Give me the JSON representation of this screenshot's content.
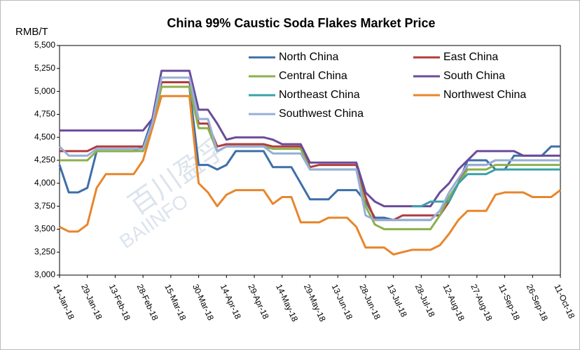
{
  "chart_data": {
    "type": "line",
    "title": "China 99% Caustic Soda Flakes Market Price",
    "y_label": "RMB/T",
    "watermark": [
      "百川盈孚",
      "BAIINFO"
    ],
    "categories": [
      "14-Jan-18",
      null,
      null,
      "29-Jan-18",
      null,
      null,
      "13-Feb-18",
      null,
      null,
      "28-Feb-18",
      null,
      null,
      "15-Mar-18",
      null,
      null,
      "30-Mar-18",
      null,
      null,
      "14-Apr-18",
      null,
      null,
      "29-Apr-18",
      null,
      null,
      "14-May-18",
      null,
      null,
      "29-May-18",
      null,
      null,
      "13-Jun-18",
      null,
      null,
      "28-Jun-18",
      null,
      null,
      "13-Jul-18",
      null,
      null,
      "28-Jul-18",
      null,
      null,
      "12-Aug-18",
      null,
      null,
      "27-Aug-18",
      null,
      null,
      "11-Sep-18",
      null,
      null,
      "26-Sep-18",
      null,
      null,
      "11-Oct-18"
    ],
    "ylim": [
      3000,
      5500
    ],
    "yticks": [
      {
        "value": 3000,
        "label": "3,000"
      },
      {
        "value": 3250,
        "label": "3,250"
      },
      {
        "value": 3500,
        "label": "3,500"
      },
      {
        "value": 3750,
        "label": "3,750"
      },
      {
        "value": 4000,
        "label": "4,000"
      },
      {
        "value": 4250,
        "label": "4,250"
      },
      {
        "value": 4500,
        "label": "4,500"
      },
      {
        "value": 4750,
        "label": "4,750"
      },
      {
        "value": 5000,
        "label": "5,000"
      },
      {
        "value": 5250,
        "label": "5,250"
      },
      {
        "value": 5500,
        "label": "5,500"
      }
    ],
    "grid": false,
    "legend": "top-right",
    "series": [
      {
        "name": "North China",
        "color": "#3d6fa8",
        "values": [
          4200,
          3900,
          3900,
          3950,
          4350,
          4350,
          4350,
          4350,
          4350,
          4400,
          4700,
          5050,
          5050,
          5050,
          5050,
          4200,
          4200,
          4150,
          4200,
          4350,
          4350,
          4350,
          4350,
          4175,
          4175,
          4175,
          4000,
          3825,
          3825,
          3825,
          3925,
          3925,
          3925,
          3800,
          3625,
          3625,
          3600,
          3600,
          3600,
          3600,
          3600,
          3700,
          3850,
          4000,
          4250,
          4250,
          4250,
          4150,
          4150,
          4300,
          4300,
          4300,
          4300,
          4400,
          4400
        ]
      },
      {
        "name": "East China",
        "color": "#b23c3c",
        "values": [
          4350,
          4350,
          4350,
          4350,
          4400,
          4400,
          4400,
          4400,
          4400,
          4400,
          4600,
          5100,
          5100,
          5100,
          5100,
          4650,
          4650,
          4400,
          4425,
          4425,
          4425,
          4425,
          4425,
          4400,
          4400,
          4400,
          4400,
          4175,
          4200,
          4200,
          4200,
          4200,
          4200,
          3850,
          3600,
          3600,
          3600,
          3650,
          3650,
          3650,
          3650,
          3650,
          3800,
          4000,
          4200,
          4200,
          4200,
          4250,
          4250,
          4250,
          4250,
          4250,
          4250,
          4250,
          4250
        ]
      },
      {
        "name": "Central China",
        "color": "#8db04b",
        "values": [
          4250,
          4250,
          4250,
          4250,
          4350,
          4350,
          4350,
          4350,
          4350,
          4350,
          4600,
          5050,
          5050,
          5050,
          5050,
          4600,
          4600,
          4350,
          4400,
          4400,
          4400,
          4400,
          4400,
          4375,
          4375,
          4375,
          4375,
          4150,
          4150,
          4150,
          4150,
          4150,
          4150,
          3750,
          3550,
          3500,
          3500,
          3500,
          3500,
          3500,
          3500,
          3650,
          3850,
          4000,
          4150,
          4150,
          4150,
          4200,
          4200,
          4200,
          4200,
          4200,
          4200,
          4200,
          4200
        ]
      },
      {
        "name": "South China",
        "color": "#6b4b9b",
        "values": [
          4575,
          4575,
          4575,
          4575,
          4575,
          4575,
          4575,
          4575,
          4575,
          4575,
          4700,
          5225,
          5225,
          5225,
          5225,
          4800,
          4800,
          4650,
          4475,
          4500,
          4500,
          4500,
          4500,
          4475,
          4425,
          4425,
          4425,
          4225,
          4225,
          4225,
          4225,
          4225,
          4225,
          3900,
          3800,
          3750,
          3750,
          3750,
          3750,
          3750,
          3750,
          3900,
          4000,
          4150,
          4250,
          4350,
          4350,
          4350,
          4350,
          4350,
          4300,
          4300,
          4300,
          4300,
          4300
        ]
      },
      {
        "name": "Northeast China",
        "color": "#3aa1a9",
        "values": [
          null,
          null,
          null,
          null,
          null,
          null,
          null,
          null,
          null,
          null,
          null,
          null,
          null,
          null,
          null,
          null,
          null,
          null,
          null,
          null,
          null,
          null,
          null,
          null,
          null,
          null,
          null,
          null,
          null,
          null,
          null,
          null,
          null,
          null,
          null,
          null,
          null,
          null,
          3750,
          3750,
          3800,
          3800,
          3800,
          4000,
          4100,
          4100,
          4100,
          4150,
          4150,
          4150,
          4150,
          4150,
          4150,
          4150,
          4150
        ]
      },
      {
        "name": "Northwest China",
        "color": "#e8862b",
        "values": [
          3525,
          3475,
          3475,
          3550,
          3950,
          4100,
          4100,
          4100,
          4100,
          4250,
          4600,
          4950,
          4950,
          4950,
          4950,
          4000,
          3900,
          3750,
          3875,
          3925,
          3925,
          3925,
          3925,
          3775,
          3850,
          3850,
          3575,
          3575,
          3575,
          3625,
          3625,
          3625,
          3525,
          3300,
          3300,
          3300,
          3225,
          3250,
          3275,
          3275,
          3275,
          3325,
          3450,
          3600,
          3700,
          3700,
          3700,
          3875,
          3900,
          3900,
          3900,
          3850,
          3850,
          3850,
          3925
        ]
      },
      {
        "name": "Southwest China",
        "color": "#96afd9",
        "values": [
          4400,
          4300,
          4300,
          4300,
          4375,
          4375,
          4375,
          4375,
          4375,
          4375,
          4650,
          5150,
          5150,
          5150,
          5150,
          4700,
          4700,
          4350,
          4400,
          4400,
          4400,
          4400,
          4400,
          4325,
          4325,
          4325,
          4325,
          4150,
          4150,
          4150,
          4150,
          4150,
          4150,
          3650,
          3600,
          3600,
          3600,
          3600,
          3600,
          3600,
          3600,
          3700,
          3900,
          4050,
          4200,
          4200,
          4200,
          4250,
          4250,
          4250,
          4250,
          4250,
          4250,
          4250,
          4250
        ]
      }
    ]
  }
}
